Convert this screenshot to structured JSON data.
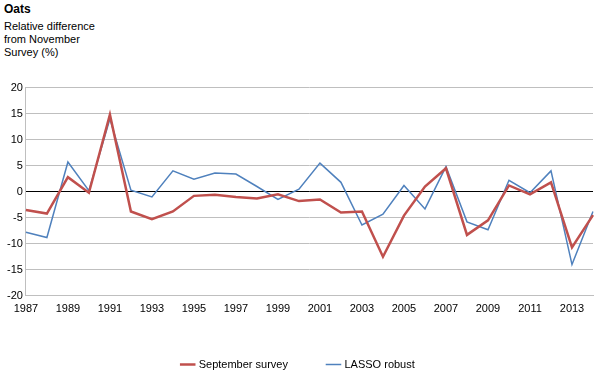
{
  "chart_data": {
    "type": "line",
    "title": "Oats",
    "y_label": "Relative difference from November Survey (%)",
    "categories": [
      "1987",
      null,
      "1989",
      null,
      "1991",
      null,
      "1993",
      null,
      "1995",
      null,
      "1997",
      null,
      "1999",
      null,
      "2001",
      null,
      "2003",
      null,
      "2005",
      null,
      "2007",
      null,
      "2009",
      null,
      "2011",
      null,
      "2013",
      null
    ],
    "series": [
      {
        "name": "September survey",
        "color": "#c0504d",
        "values": [
          -3.5,
          -4.2,
          2.8,
          -0.2,
          14.8,
          -3.8,
          -5.3,
          -3.8,
          -0.8,
          -0.6,
          -1.0,
          -1.3,
          -0.5,
          -1.8,
          -1.5,
          -4.0,
          -3.8,
          -12.5,
          -4.6,
          1.0,
          4.5,
          -8.3,
          -5.5,
          1.2,
          -0.5,
          1.8,
          -10.7,
          -4.5
        ]
      },
      {
        "name": "LASSO robust",
        "color": "#4f81bd",
        "values": [
          -7.8,
          -8.8,
          5.7,
          0.2,
          14.0,
          0.3,
          -1.0,
          4.0,
          2.4,
          3.6,
          3.4,
          1.0,
          -1.5,
          0.5,
          5.5,
          1.8,
          -6.4,
          -4.3,
          1.2,
          -3.3,
          4.8,
          -5.8,
          -7.3,
          2.2,
          -0.2,
          4.0,
          -14.0,
          -3.8
        ]
      }
    ],
    "ylim": [
      -20,
      20
    ],
    "yticks": [
      -20,
      -15,
      -10,
      -5,
      0,
      5,
      10,
      15,
      20
    ],
    "grid": true,
    "legend": "bottom"
  }
}
